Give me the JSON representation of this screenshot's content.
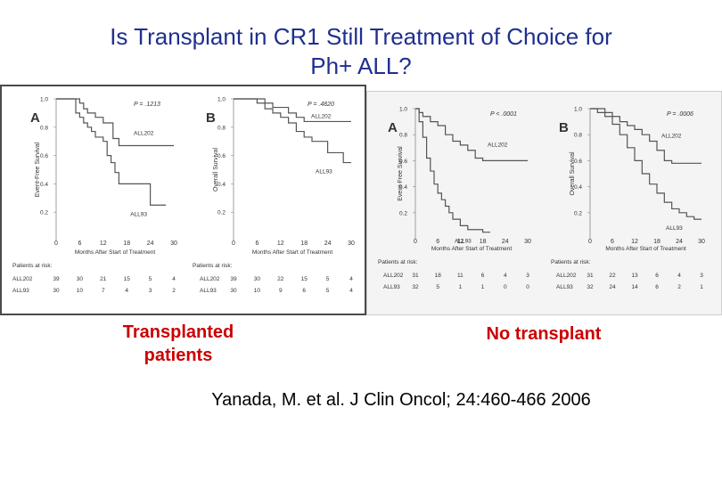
{
  "slide": {
    "title_line1": "Is Transplant in CR1 Still Treatment of Choice for",
    "title_line2": "Ph+ ALL?",
    "caption_left": "Transplanted patients",
    "caption_right": "No transplant",
    "citation": "Yanada, M. et al. J Clin Oncol; 24:460-466 2006"
  },
  "colors": {
    "title": "#1f2f8f",
    "caption": "#cc0000",
    "curve": "#555555"
  },
  "chart_data": [
    {
      "type": "line",
      "panel": "A",
      "group": "Transplanted patients",
      "title": "",
      "xlabel": "Months After Start of Treatment",
      "ylabel": "Event-Free Survival",
      "pvalue": "P = .1213",
      "xlim": [
        0,
        30
      ],
      "ylim": [
        0,
        1.0
      ],
      "xticks": [
        "0",
        "6",
        "12",
        "18",
        "24",
        "30"
      ],
      "yticks": [
        "0.2",
        "0.4",
        "0.6",
        "0.8",
        "1.0"
      ],
      "series": [
        {
          "name": "ALL202",
          "x": [
            0,
            3,
            6,
            7,
            8,
            10,
            12,
            14,
            14.5,
            15,
            16,
            18,
            22,
            24,
            26,
            30
          ],
          "y": [
            1.0,
            1.0,
            0.97,
            0.93,
            0.9,
            0.87,
            0.83,
            0.83,
            0.72,
            0.72,
            0.67,
            0.67,
            0.67,
            0.67,
            0.67,
            0.67
          ]
        },
        {
          "name": "ALL93",
          "x": [
            0,
            3,
            5,
            6,
            7,
            8,
            9,
            10,
            12,
            13,
            14,
            15,
            16,
            18,
            24,
            28
          ],
          "y": [
            1.0,
            1.0,
            0.9,
            0.87,
            0.83,
            0.8,
            0.77,
            0.73,
            0.7,
            0.6,
            0.55,
            0.48,
            0.4,
            0.4,
            0.25,
            0.25
          ]
        }
      ],
      "risk_table": {
        "label": "Patients at risk:",
        "rows": [
          {
            "name": "ALL202",
            "values": [
              "39",
              "30",
              "21",
              "15",
              "5",
              "4"
            ]
          },
          {
            "name": "ALL93",
            "values": [
              "30",
              "10",
              "7",
              "4",
              "3",
              "2"
            ]
          }
        ]
      }
    },
    {
      "type": "line",
      "panel": "B",
      "group": "Transplanted patients",
      "title": "",
      "xlabel": "Months After Start of Treatment",
      "ylabel": "Overall Survival",
      "pvalue": "P = .4820",
      "xlim": [
        0,
        30
      ],
      "ylim": [
        0,
        1.0
      ],
      "xticks": [
        "0",
        "6",
        "12",
        "18",
        "24",
        "30"
      ],
      "yticks": [
        "0.2",
        "0.4",
        "0.6",
        "0.8",
        "1.0"
      ],
      "series": [
        {
          "name": "ALL202",
          "x": [
            0,
            4,
            8,
            10,
            12,
            14,
            16,
            18,
            20,
            22,
            24,
            27,
            30
          ],
          "y": [
            1.0,
            1.0,
            0.97,
            0.94,
            0.94,
            0.9,
            0.87,
            0.84,
            0.84,
            0.84,
            0.84,
            0.84,
            0.84
          ]
        },
        {
          "name": "ALL93",
          "x": [
            0,
            4,
            6,
            8,
            10,
            12,
            14,
            16,
            18,
            20,
            24,
            28,
            30
          ],
          "y": [
            1.0,
            1.0,
            0.97,
            0.93,
            0.9,
            0.87,
            0.83,
            0.77,
            0.73,
            0.7,
            0.62,
            0.55,
            0.55
          ]
        }
      ],
      "risk_table": {
        "label": "Patients at risk:",
        "rows": [
          {
            "name": "ALL202",
            "values": [
              "39",
              "30",
              "22",
              "15",
              "5",
              "4"
            ]
          },
          {
            "name": "ALL93",
            "values": [
              "30",
              "10",
              "9",
              "6",
              "5",
              "4"
            ]
          }
        ]
      }
    },
    {
      "type": "line",
      "panel": "A",
      "group": "No transplant",
      "title": "",
      "xlabel": "Months After Start of Treatment",
      "ylabel": "Event-Free Survival",
      "pvalue": "P < .0001",
      "xlim": [
        0,
        30
      ],
      "ylim": [
        0,
        1.0
      ],
      "xticks": [
        "0",
        "6",
        "12",
        "18",
        "24",
        "30"
      ],
      "yticks": [
        "0.2",
        "0.4",
        "0.6",
        "0.8",
        "1.0"
      ],
      "series": [
        {
          "name": "ALL202",
          "x": [
            0,
            1,
            2,
            4,
            6,
            8,
            10,
            12,
            14,
            16,
            18,
            20,
            24,
            30
          ],
          "y": [
            1.0,
            0.97,
            0.94,
            0.9,
            0.87,
            0.8,
            0.75,
            0.72,
            0.68,
            0.62,
            0.6,
            0.6,
            0.6,
            0.6
          ]
        },
        {
          "name": "ALL93",
          "x": [
            0,
            1,
            2,
            3,
            4,
            5,
            6,
            7,
            8,
            9,
            10,
            12,
            14,
            18,
            20
          ],
          "y": [
            1.0,
            0.9,
            0.78,
            0.62,
            0.52,
            0.42,
            0.35,
            0.3,
            0.25,
            0.2,
            0.15,
            0.1,
            0.07,
            0.05,
            0.05
          ]
        }
      ],
      "risk_table": {
        "label": "Patients at risk:",
        "rows": [
          {
            "name": "ALL202",
            "values": [
              "31",
              "18",
              "11",
              "6",
              "4",
              "3"
            ]
          },
          {
            "name": "ALL93",
            "values": [
              "32",
              "5",
              "1",
              "1",
              "0",
              "0"
            ]
          }
        ]
      }
    },
    {
      "type": "line",
      "panel": "B",
      "group": "No transplant",
      "title": "",
      "xlabel": "Months After Start of Treatment",
      "ylabel": "Overall Survival",
      "pvalue": "P = .0006",
      "xlim": [
        0,
        30
      ],
      "ylim": [
        0,
        1.0
      ],
      "xticks": [
        "0",
        "6",
        "12",
        "18",
        "24",
        "30"
      ],
      "yticks": [
        "0.2",
        "0.4",
        "0.6",
        "0.8",
        "1.0"
      ],
      "series": [
        {
          "name": "ALL202",
          "x": [
            0,
            2,
            4,
            6,
            8,
            10,
            12,
            14,
            16,
            18,
            20,
            22,
            24,
            30
          ],
          "y": [
            1.0,
            1.0,
            0.97,
            0.94,
            0.9,
            0.87,
            0.84,
            0.8,
            0.75,
            0.68,
            0.6,
            0.58,
            0.58,
            0.58
          ]
        },
        {
          "name": "ALL93",
          "x": [
            0,
            2,
            4,
            6,
            8,
            10,
            12,
            14,
            16,
            18,
            20,
            22,
            24,
            26,
            28,
            30
          ],
          "y": [
            1.0,
            0.97,
            0.94,
            0.88,
            0.8,
            0.7,
            0.6,
            0.5,
            0.42,
            0.35,
            0.28,
            0.23,
            0.2,
            0.17,
            0.15,
            0.15
          ]
        }
      ],
      "risk_table": {
        "label": "Patients at risk:",
        "rows": [
          {
            "name": "ALL202",
            "values": [
              "31",
              "22",
              "13",
              "6",
              "4",
              "3"
            ]
          },
          {
            "name": "ALL93",
            "values": [
              "32",
              "24",
              "14",
              "6",
              "2",
              "1"
            ]
          }
        ]
      }
    }
  ]
}
